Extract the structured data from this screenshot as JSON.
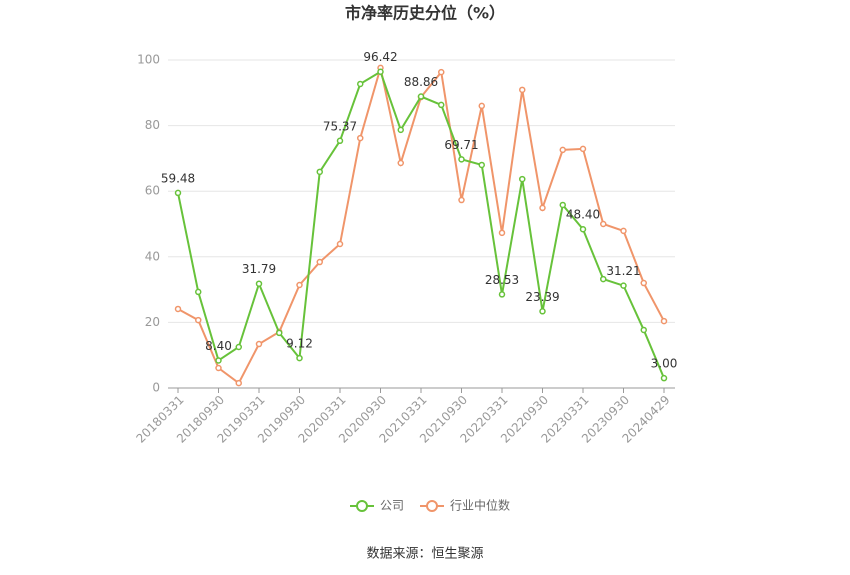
{
  "chart_data": {
    "type": "line",
    "title": "市净率历史分位（%）",
    "source": "数据来源：恒生聚源",
    "categories": [
      "20180331",
      null,
      "20180930",
      null,
      "20190331",
      null,
      "20190930",
      null,
      "20200331",
      null,
      "20200930",
      null,
      "20210331",
      null,
      "20210930",
      null,
      "20220331",
      null,
      "20220930",
      null,
      "20230331",
      null,
      "20230930",
      null,
      "20240429"
    ],
    "series": [
      {
        "name": "公司",
        "color": "#67c23a",
        "values": [
          59.48,
          29.3,
          8.4,
          12.5,
          31.79,
          16.8,
          9.12,
          65.9,
          75.37,
          92.7,
          96.42,
          78.7,
          88.86,
          86.3,
          69.71,
          68.0,
          28.53,
          63.7,
          23.39,
          55.8,
          48.4,
          33.2,
          31.21,
          17.7,
          3.0
        ],
        "value_labels": [
          "59.48",
          null,
          "8.40",
          null,
          "31.79",
          null,
          "9.12",
          null,
          "75.37",
          null,
          "96.42",
          null,
          "88.86",
          null,
          "69.71",
          null,
          "28.53",
          null,
          "23.39",
          null,
          "48.40",
          null,
          "31.21",
          null,
          "3.00"
        ]
      },
      {
        "name": "行业中位数",
        "color": "#f0956a",
        "values": [
          24.1,
          20.7,
          6.1,
          1.5,
          13.4,
          17.1,
          31.4,
          38.4,
          43.9,
          76.2,
          97.6,
          68.6,
          88.7,
          96.3,
          57.3,
          86.0,
          47.3,
          90.9,
          54.9,
          72.6,
          72.9,
          50.0,
          47.9,
          32.0,
          20.4
        ]
      }
    ],
    "ylim": [
      0,
      100
    ],
    "yticks": [
      0,
      20,
      40,
      60,
      80,
      100
    ],
    "grid": true,
    "legend": "bottom"
  }
}
